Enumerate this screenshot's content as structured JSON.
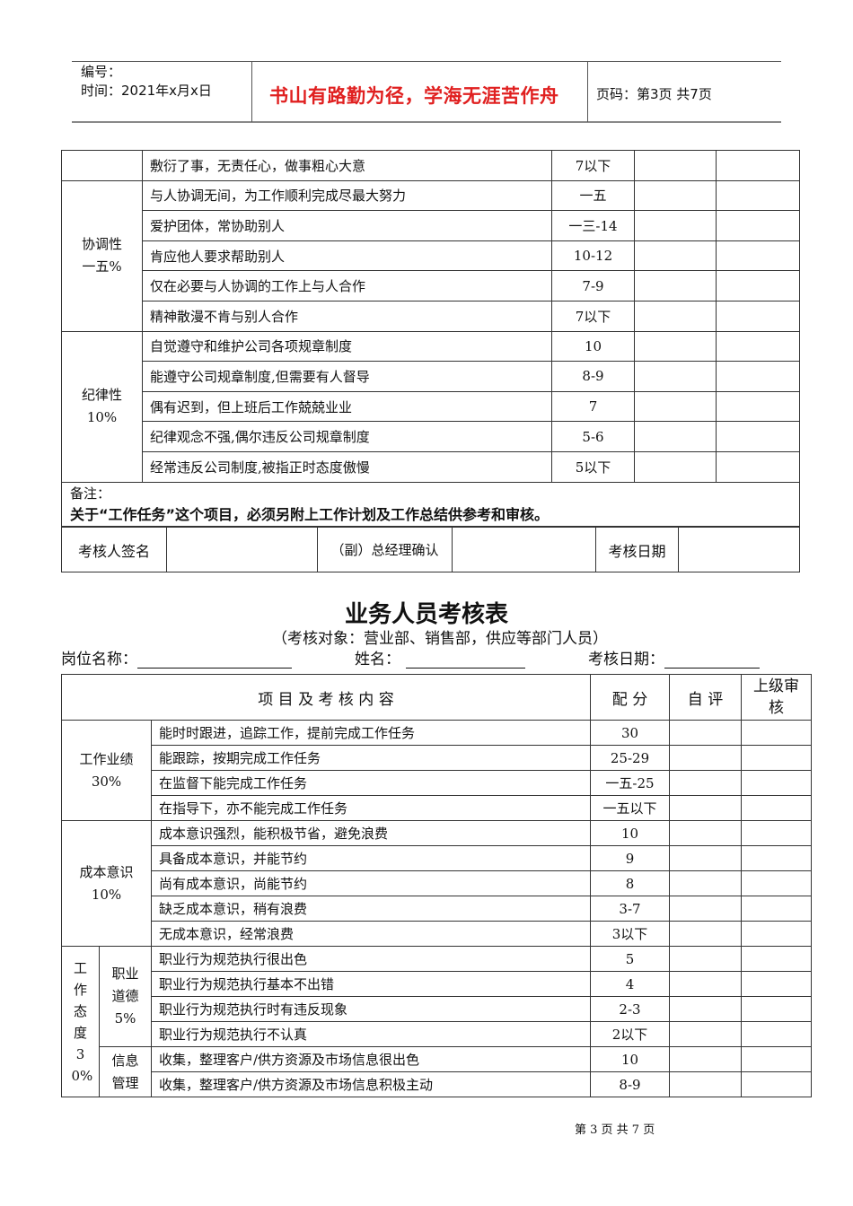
{
  "header": {
    "number_label": "编号：",
    "time_label": "时间：2021年x月x日",
    "motto": "书山有路勤为径，学海无涯苦作舟",
    "page_label": "页码：第3页  共7页",
    "motto_color": "#e02020"
  },
  "table1": {
    "rows_top": [
      {
        "content": "敷衍了事，无责任心，做事粗心大意",
        "score": "7以下"
      }
    ],
    "groups": [
      {
        "name": "协调性",
        "weight": "一五%",
        "rows": [
          {
            "content": "与人协调无间，为工作顺利完成尽最大努力",
            "score": "一五"
          },
          {
            "content": "爱护团体，常协助别人",
            "score": "一三-14"
          },
          {
            "content": "肯应他人要求帮助别人",
            "score": "10-12"
          },
          {
            "content": "仅在必要与人协调的工作上与人合作",
            "score": "7-9"
          },
          {
            "content": "精神散漫不肯与别人合作",
            "score": "7以下"
          }
        ]
      },
      {
        "name": "纪律性",
        "weight": "10%",
        "rows": [
          {
            "content": "自觉遵守和维护公司各项规章制度",
            "score": "10"
          },
          {
            "content": "能遵守公司规章制度,但需要有人督导",
            "score": "8-9"
          },
          {
            "content": "偶有迟到，但上班后工作兢兢业业",
            "score": "7"
          },
          {
            "content": "纪律观念不强,偶尔违反公司规章制度",
            "score": "5-6"
          },
          {
            "content": "经常违反公司制度,被指正时态度傲慢",
            "score": "5以下"
          }
        ]
      }
    ],
    "remark_label": "备注：",
    "remark_text": "关于“工作任务”这个项目，必须另附上工作计划及工作总结供参考和审核。",
    "sign_label": "考核人签名",
    "gm_label": "（副）总经理确认",
    "date_label": "考核日期"
  },
  "form2": {
    "title": "业务人员考核表",
    "subtitle": "（考核对象：营业部、销售部，供应等部门人员）",
    "post_label": "岗位名称：",
    "name_label": "姓名：",
    "date_label": "考核日期：",
    "head": {
      "content": "项 目 及 考 核 内 容",
      "score": "配  分",
      "self": "自  评",
      "review": "上级审核"
    },
    "g1": {
      "name": "工作业绩",
      "weight": "30%",
      "rows": [
        {
          "content": "能时时跟进，追踪工作，提前完成工作任务",
          "score": "30"
        },
        {
          "content": "能跟踪，按期完成工作任务",
          "score": "25-29"
        },
        {
          "content": "在监督下能完成工作任务",
          "score": "一五-25"
        },
        {
          "content": "在指导下，亦不能完成工作任务",
          "score": "一五以下"
        }
      ]
    },
    "g2": {
      "name": "成本意识",
      "weight": "10%",
      "rows": [
        {
          "content": "成本意识强烈，能积极节省，避免浪费",
          "score": "10"
        },
        {
          "content": "具备成本意识，并能节约",
          "score": "9"
        },
        {
          "content": "尚有成本意识，尚能节约",
          "score": "8"
        },
        {
          "content": "缺乏成本意识，稍有浪费",
          "score": "3-7"
        },
        {
          "content": "无成本意识，经常浪费",
          "score": "3以下"
        }
      ]
    },
    "g3": {
      "name": "工作态度",
      "weight": "30%",
      "sub1": {
        "name": "职业道德",
        "weight": "5%",
        "rows": [
          {
            "content": "职业行为规范执行很出色",
            "score": "5"
          },
          {
            "content": "职业行为规范执行基本不出错",
            "score": "4"
          },
          {
            "content": "职业行为规范执行时有违反现象",
            "score": "2-3"
          },
          {
            "content": "职业行为规范执行不认真",
            "score": "2以下"
          }
        ]
      },
      "sub2": {
        "name": "信息管理",
        "rows": [
          {
            "content": "收集，整理客户/供方资源及市场信息很出色",
            "score": "10"
          },
          {
            "content": "收集，整理客户/供方资源及市场信息积极主动",
            "score": "8-9"
          }
        ]
      }
    }
  },
  "footer": {
    "page": "第 3 页 共 7 页"
  }
}
